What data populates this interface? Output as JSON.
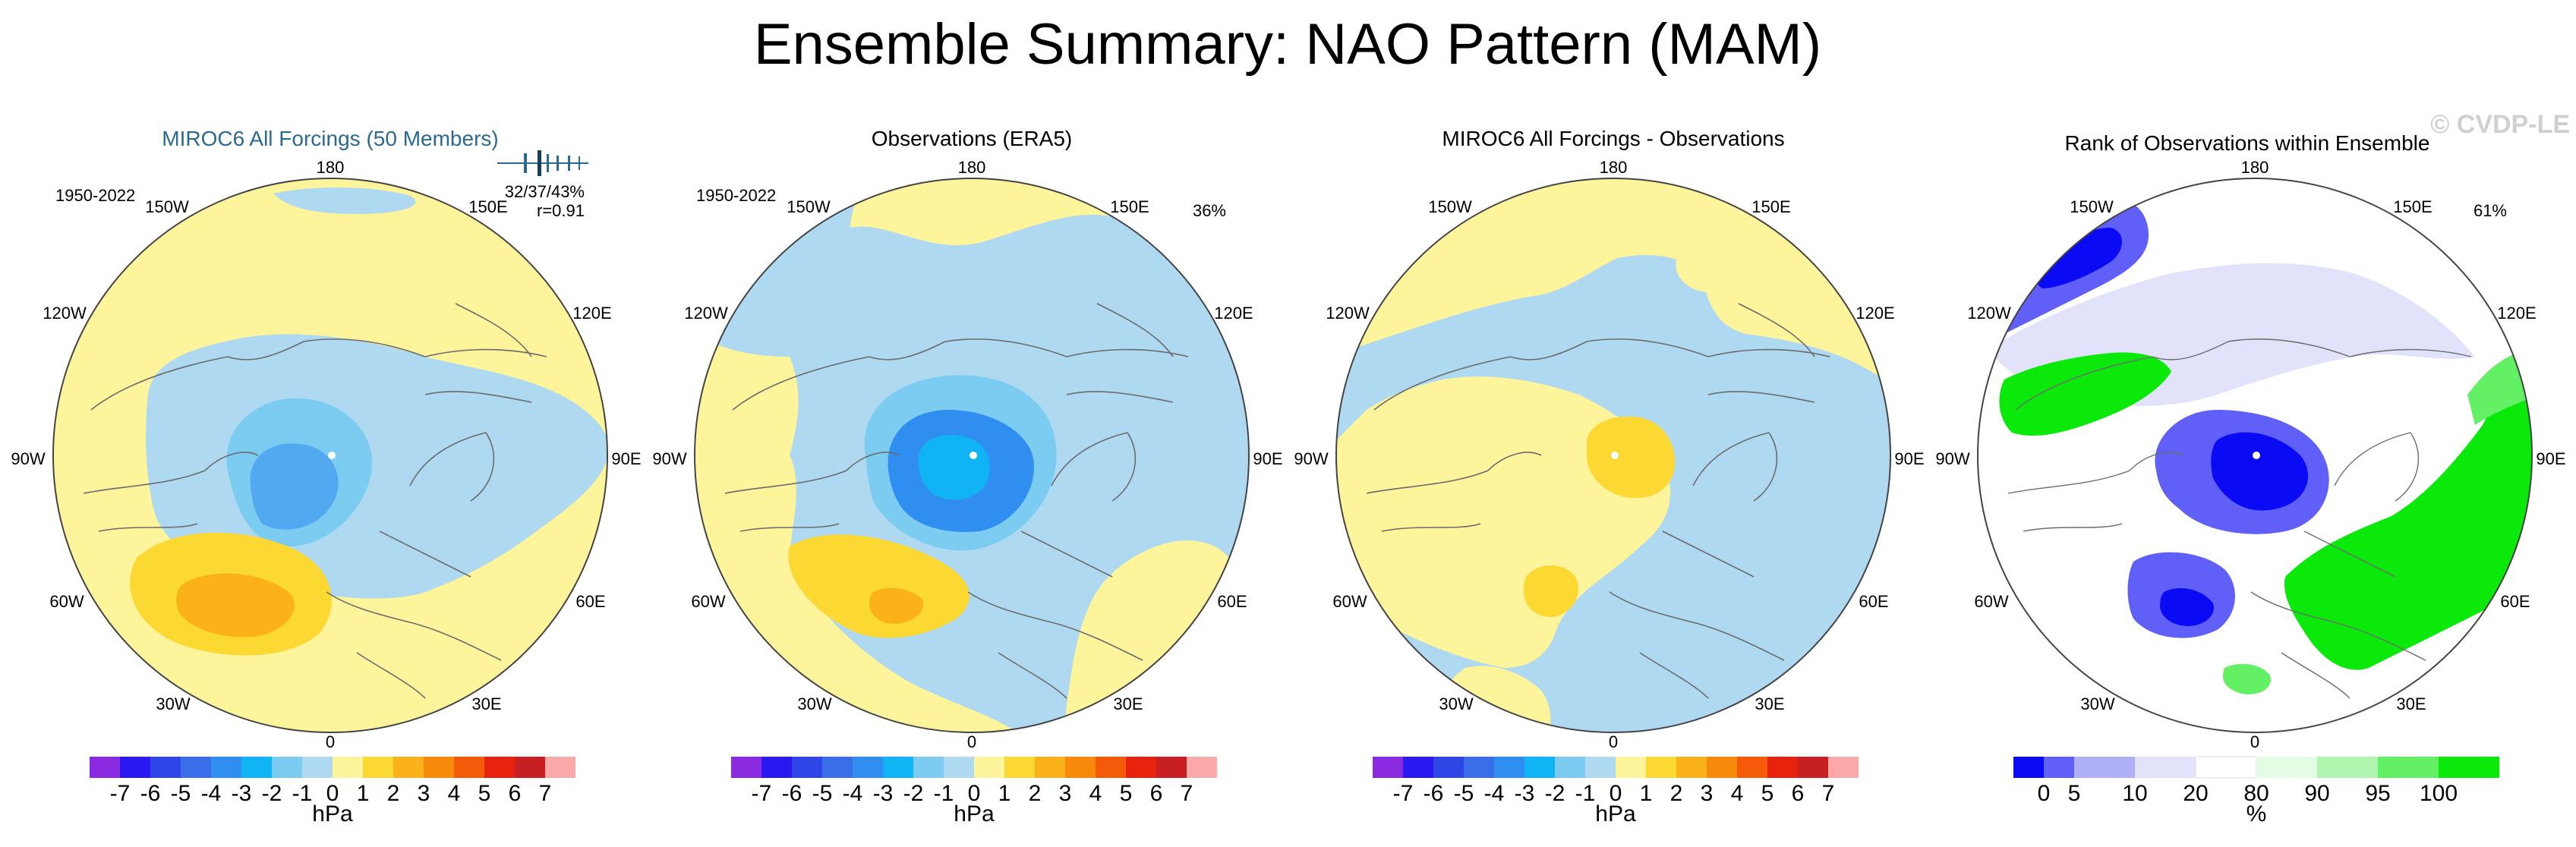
{
  "title": "Ensemble Summary: NAO Pattern (MAM)",
  "watermark": "© CVDP-LE",
  "longitude_labels": [
    "180",
    "150E",
    "120E",
    "90E",
    "60E",
    "30E",
    "0",
    "30W",
    "60W",
    "90W",
    "120W",
    "150W"
  ],
  "colors": {
    "hpa_scale": [
      "#8a2be2",
      "#2a18f0",
      "#2e46e8",
      "#3a6ee8",
      "#2f8ef0",
      "#10b4f5",
      "#7ccbf0",
      "#aed9f0",
      "#fdf49b",
      "#fcd833",
      "#fbb21a",
      "#f78a0a",
      "#f45a08",
      "#e8220d",
      "#c82022",
      "#fba8a8"
    ],
    "rank_scale": [
      "#0a0af5",
      "#6060f8",
      "#b0b0f8",
      "#e2e2fb",
      "#ffffff",
      "#e4fbe4",
      "#b0f6b0",
      "#64f064",
      "#0ae90a"
    ],
    "ocean": "#aed9f0",
    "land_pos": "#fdf49b",
    "coast": "#6b6b6b"
  },
  "panels": [
    {
      "title": "MIROC6 All Forcings (50 Members)",
      "title_color": "#2a6a90",
      "period": "1950-2022",
      "stat_line1": "32/37/43%",
      "stat_line2": "r=0.91",
      "has_spread_bar": true,
      "pct": "",
      "colorbar": "hpa"
    },
    {
      "title": "Observations (ERA5)",
      "title_color": "#000000",
      "period": "1950-2022",
      "stat_line1": "",
      "stat_line2": "",
      "has_spread_bar": false,
      "pct": "36%",
      "colorbar": "hpa"
    },
    {
      "title": "MIROC6 All Forcings - Observations",
      "title_color": "#000000",
      "period": "",
      "stat_line1": "",
      "stat_line2": "",
      "has_spread_bar": false,
      "pct": "",
      "colorbar": "hpa"
    },
    {
      "title": "Rank of Observations within Ensemble",
      "title_color": "#000000",
      "period": "",
      "stat_line1": "",
      "stat_line2": "",
      "has_spread_bar": false,
      "pct": "61%",
      "colorbar": "rank"
    }
  ],
  "chart_data": {
    "type": "heatmap",
    "projection": "north-polar-stereographic",
    "hpa_colorbar": {
      "ticks": [
        -7,
        -6,
        -5,
        -4,
        -3,
        -2,
        -1,
        0,
        1,
        2,
        3,
        4,
        5,
        6,
        7
      ],
      "tick_labels": [
        "-7",
        "-6",
        "-5",
        "-4",
        "-3",
        "-2",
        "-1",
        "0",
        "1",
        "2",
        "3",
        "4",
        "5",
        "6",
        "7"
      ],
      "label": "hPa"
    },
    "rank_colorbar": {
      "ticks": [
        0,
        5,
        10,
        20,
        80,
        90,
        95,
        100
      ],
      "tick_labels": [
        "0",
        "5",
        "10",
        "20",
        "80",
        "90",
        "95",
        "100"
      ],
      "label": "%"
    },
    "panel_fields": [
      {
        "name": "MIROC6 All Forcings (50 Members)",
        "background_level": 1,
        "features": [
          {
            "label": "Arctic low",
            "lon": -100,
            "colat": 10,
            "radius": 9,
            "level": -1
          },
          {
            "label": "Arctic low",
            "lon": -100,
            "colat": 8,
            "radius": 6,
            "level": -2
          },
          {
            "label": "Arctic low core",
            "lon": -110,
            "colat": 7,
            "radius": 3,
            "level": -3
          },
          {
            "label": "Atlantic high",
            "lon": -50,
            "colat": 40,
            "radius": 7,
            "level": 2
          },
          {
            "label": "Atlantic high core",
            "lon": -50,
            "colat": 40,
            "radius": 4,
            "level": 3
          }
        ]
      },
      {
        "name": "Observations (ERA5)",
        "background_level": 1,
        "features": [
          {
            "label": "Arctic low",
            "lon": -100,
            "colat": 8,
            "radius": 10,
            "level": -1
          },
          {
            "label": "Arctic low",
            "lon": -100,
            "colat": 8,
            "radius": 7,
            "level": -2
          },
          {
            "label": "Arctic low",
            "lon": -100,
            "colat": 8,
            "radius": 5,
            "level": -3
          },
          {
            "label": "Arctic low core",
            "lon": -110,
            "colat": 7,
            "radius": 2,
            "level": -4
          },
          {
            "label": "Atlantic high",
            "lon": -45,
            "colat": 40,
            "radius": 7,
            "level": 2
          },
          {
            "label": "Atlantic high core",
            "lon": -45,
            "colat": 40,
            "radius": 3,
            "level": 3
          }
        ]
      },
      {
        "name": "MIROC6 All Forcings - Observations",
        "background_level": -1,
        "features": [
          {
            "label": "Arctic positive",
            "lon": 80,
            "colat": 10,
            "radius": 8,
            "level": 1
          },
          {
            "label": "Arctic positive core",
            "lon": 80,
            "colat": 9,
            "radius": 4,
            "level": 2
          },
          {
            "label": "Atlantic positive",
            "lon": -50,
            "colat": 40,
            "radius": 3,
            "level": 2
          }
        ]
      },
      {
        "name": "Rank of Observations within Ensemble",
        "background_level": 20,
        "features": [
          {
            "label": "Arctic low rank",
            "lon": -120,
            "colat": 8,
            "radius": 4,
            "level": 0
          },
          {
            "label": "Pacific low rank",
            "lon": -150,
            "colat": 45,
            "radius": 5,
            "level": 5
          },
          {
            "label": "Atlantic low rank",
            "lon": -50,
            "colat": 38,
            "radius": 4,
            "level": 5
          },
          {
            "label": "Eurasia high rank",
            "lon": 60,
            "colat": 35,
            "radius": 10,
            "level": 100
          },
          {
            "label": "Canada high rank",
            "lon": -120,
            "colat": 30,
            "radius": 6,
            "level": 95
          }
        ]
      }
    ]
  }
}
